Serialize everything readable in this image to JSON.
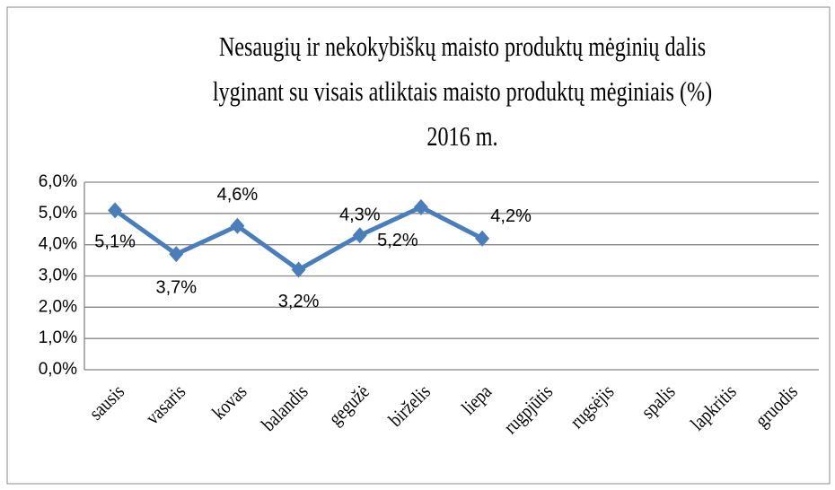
{
  "chart_data": {
    "type": "line",
    "title": [
      "Nesaugių ir nekokybiškų maisto produktų mėginių dalis",
      "lyginant  su visais atliktais maisto produktų mėginiais (%)",
      "2016 m."
    ],
    "categories": [
      "sausis",
      "vasaris",
      "kovas",
      "balandis",
      "gegužė",
      "birželis",
      "liepa",
      "rugpjūtis",
      "rugsėjis",
      "spalis",
      "lapkritis",
      "gruodis"
    ],
    "series": [
      {
        "name": "",
        "color": "#4a7ebb",
        "values": [
          5.1,
          3.7,
          4.6,
          3.2,
          4.3,
          5.2,
          4.2,
          null,
          null,
          null,
          null,
          null
        ],
        "value_labels": [
          "5,1%",
          "3,7%",
          "4,6%",
          "3,2%",
          "4,3%",
          "5,2%",
          "4,2%",
          null,
          null,
          null,
          null,
          null
        ]
      }
    ],
    "ylim": [
      0,
      6
    ],
    "yticks": [
      {
        "value": 0,
        "label": "0,0%"
      },
      {
        "value": 1,
        "label": "1,0%"
      },
      {
        "value": 2,
        "label": "2,0%"
      },
      {
        "value": 3,
        "label": "3,0%"
      },
      {
        "value": 4,
        "label": "4,0%"
      },
      {
        "value": 5,
        "label": "5,0%"
      },
      {
        "value": 6,
        "label": "6,0%"
      }
    ],
    "grid": true
  }
}
